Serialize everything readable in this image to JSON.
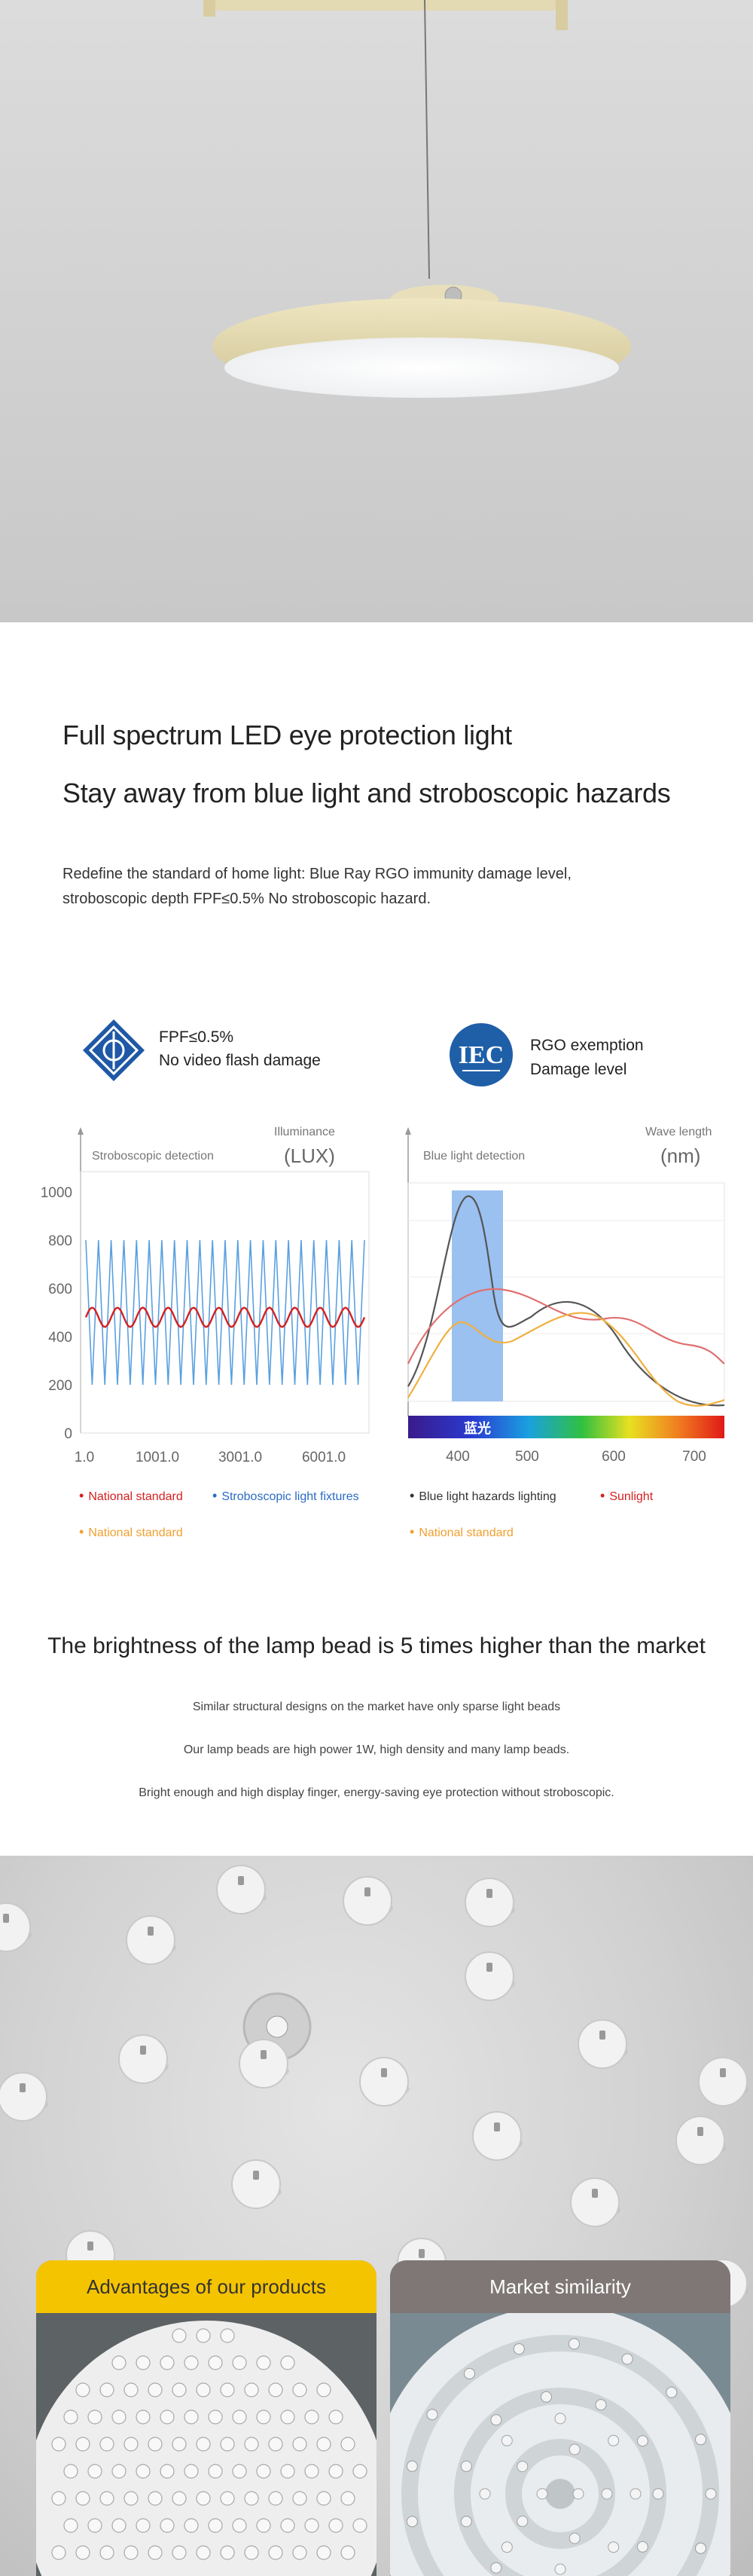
{
  "intro": {
    "title_line1": "Full spectrum LED eye protection light",
    "title_line2": "Stay away from blue light and stroboscopic hazards",
    "description_line1": "Redefine the standard of home light: Blue Ray RGO immunity damage level,",
    "description_line2": "stroboscopic depth FPF≤0.5% No stroboscopic hazard."
  },
  "badges": {
    "fpf": {
      "line1": "FPF≤0.5%",
      "line2": "No video flash damage",
      "icon": "fpf-diamond-icon"
    },
    "iec": {
      "line1": "RGO exemption",
      "line2": "Damage level",
      "icon_text": "IEC",
      "icon": "iec-logo-icon"
    }
  },
  "chart_data": [
    {
      "type": "line",
      "title": "Stroboscopic detection",
      "ylabel": "Illuminance",
      "yunit": "(LUX)",
      "y_ticks": [
        "1000",
        "800",
        "600",
        "400",
        "200",
        "0"
      ],
      "x_ticks": [
        "1.0",
        "1001.0",
        "3001.0",
        "6001.0"
      ],
      "ylim": [
        0,
        1000
      ],
      "series": [
        {
          "name": "National standard",
          "color": "#d42020",
          "description": "oscillating around 480",
          "amplitude": [
            440,
            520
          ]
        },
        {
          "name": "Stroboscopic light fixtures",
          "color": "#5aa0e0",
          "description": "oscillating between 200 and 800",
          "amplitude": [
            200,
            800
          ]
        }
      ],
      "legend": [
        {
          "label": "National standard",
          "color": "#d42020"
        },
        {
          "label": "Stroboscopic light fixtures",
          "color": "#2a6cc4"
        },
        {
          "label": "National standard",
          "color": "#f0a030"
        }
      ]
    },
    {
      "type": "line",
      "title": "Blue light detection",
      "xlabel": "Wave length",
      "xunit": "(nm)",
      "x_ticks": [
        "400",
        "500",
        "600",
        "700"
      ],
      "band_label": "蓝光",
      "series": [
        {
          "name": "Blue light hazards lighting",
          "color": "#555555"
        },
        {
          "name": "Sunlight",
          "color": "#e07070"
        },
        {
          "name": "National standard",
          "color": "#f0b040"
        }
      ],
      "legend": [
        {
          "label": "Blue light hazards lighting",
          "color": "#333333"
        },
        {
          "label": "Sunlight",
          "color": "#d42020"
        },
        {
          "label": "National standard",
          "color": "#f0a030"
        }
      ]
    }
  ],
  "brightness": {
    "title": "The brightness of the lamp bead is 5 times higher than the market",
    "line1": "Similar structural designs on the market have only sparse light beads",
    "line2": "Our lamp beads are high power 1W, high density and many lamp beads.",
    "line3": "Bright enough and high display finger, energy-saving eye protection without stroboscopic."
  },
  "compare": {
    "left_label": "Advantages of our products",
    "right_label": "Market similarity",
    "left_color": "#f5c400",
    "right_color": "#7f7776"
  }
}
